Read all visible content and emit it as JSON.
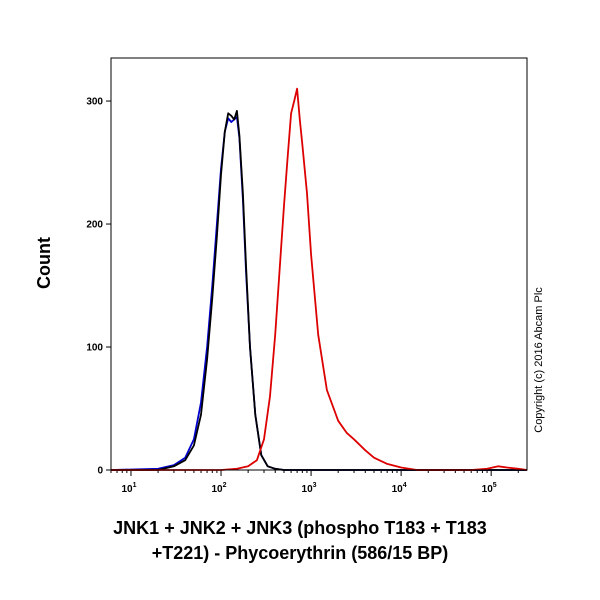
{
  "chart_data": {
    "type": "line",
    "title": "",
    "xlabel_lines": [
      "JNK1 + JNK2 + JNK3 (phospho T183 + T183",
      "+T221) - Phycoerythrin (586/15 BP)"
    ],
    "ylabel": "Count",
    "x_scale": "log",
    "xlim": [
      6,
      250000
    ],
    "ylim": [
      0,
      335
    ],
    "yticks": [
      0,
      100,
      200,
      300
    ],
    "xticks": [
      {
        "value": 10,
        "base": "10",
        "exp": "1"
      },
      {
        "value": 100,
        "base": "10",
        "exp": "2"
      },
      {
        "value": 1000,
        "base": "10",
        "exp": "3"
      },
      {
        "value": 10000,
        "base": "10",
        "exp": "4"
      },
      {
        "value": 100000,
        "base": "10",
        "exp": "5"
      }
    ],
    "grid": false,
    "legend": "none",
    "annotation": "Copyright (c) 2016 Abcam Plc",
    "series": [
      {
        "color": "#0000cc",
        "x": [
          6,
          20,
          30,
          40,
          50,
          60,
          70,
          80,
          90,
          100,
          110,
          120,
          130,
          140,
          150,
          160,
          175,
          190,
          210,
          240,
          280,
          330,
          400,
          500,
          700,
          1000,
          10000,
          250000
        ],
        "y": [
          0,
          1,
          4,
          10,
          25,
          55,
          100,
          150,
          200,
          245,
          275,
          286,
          283,
          285,
          287,
          270,
          220,
          160,
          100,
          45,
          12,
          3,
          1,
          0,
          0,
          0,
          0,
          0
        ]
      },
      {
        "color": "#000000",
        "x": [
          6,
          20,
          30,
          40,
          50,
          60,
          70,
          80,
          90,
          100,
          110,
          120,
          130,
          140,
          150,
          160,
          175,
          190,
          210,
          240,
          280,
          330,
          400,
          500,
          700,
          1000,
          10000,
          250000
        ],
        "y": [
          0,
          0,
          3,
          8,
          20,
          45,
          90,
          140,
          190,
          240,
          275,
          290,
          288,
          285,
          292,
          272,
          225,
          165,
          100,
          45,
          12,
          3,
          1,
          0,
          0,
          0,
          0,
          0
        ]
      },
      {
        "color": "#dd0000",
        "x": [
          6,
          100,
          150,
          200,
          250,
          300,
          350,
          400,
          450,
          500,
          550,
          600,
          650,
          700,
          750,
          800,
          900,
          1000,
          1200,
          1500,
          2000,
          2500,
          3000,
          4000,
          5000,
          7000,
          10000,
          15000,
          30000,
          60000,
          90000,
          120000,
          150000,
          200000,
          250000
        ],
        "y": [
          0,
          0,
          1,
          3,
          8,
          25,
          60,
          110,
          165,
          215,
          255,
          290,
          300,
          310,
          285,
          265,
          225,
          175,
          110,
          65,
          40,
          30,
          25,
          16,
          10,
          5,
          2,
          0,
          0,
          0,
          1,
          3,
          2,
          1,
          0
        ]
      }
    ]
  }
}
